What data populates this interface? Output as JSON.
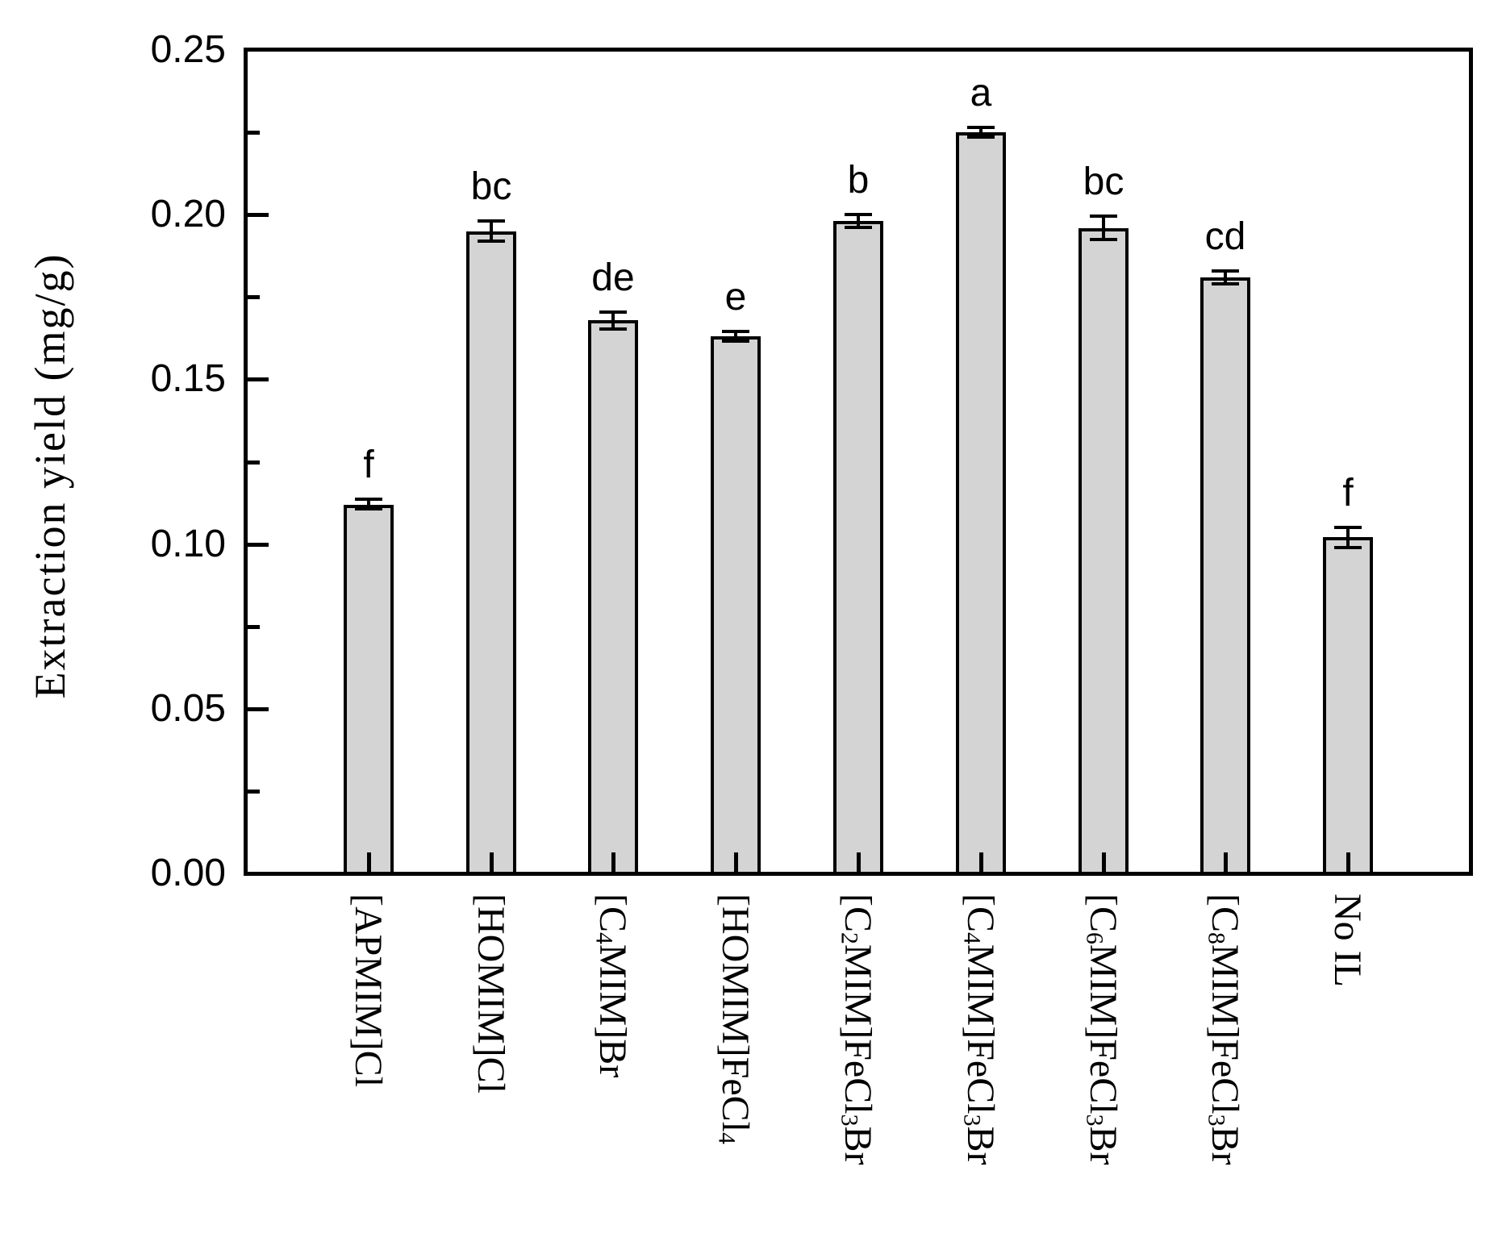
{
  "figure": {
    "background": "#ffffff"
  },
  "chart_data": {
    "type": "bar",
    "title": "",
    "ylabel": "Extraction yield (mg/g)",
    "xlabel": "",
    "ylim": [
      0,
      0.25
    ],
    "y_major_step": 0.05,
    "y_minor_step": 0.025,
    "y_tick_labels": [
      "0.00",
      "0.05",
      "0.10",
      "0.15",
      "0.20",
      "0.25"
    ],
    "grid": false,
    "legend": false,
    "bar_fill": "#d4d4d4",
    "bar_edge": "#000000",
    "categories": [
      "[APMIM]Cl",
      "[HOMIM]Cl",
      "[C4MIM]Br",
      "[HOMIM]FeCl4",
      "[C2MIM]FeCl3Br",
      "[C4MIM]FeCl3Br",
      "[C6MIM]FeCl3Br",
      "[C8MIM]FeCl3Br",
      "No IL"
    ],
    "categories_rich": [
      [
        {
          "t": "[APMIM]Cl"
        }
      ],
      [
        {
          "t": "[HOMIM]Cl"
        }
      ],
      [
        {
          "t": "[C"
        },
        {
          "t": "4",
          "sub": true
        },
        {
          "t": "MIM]Br"
        }
      ],
      [
        {
          "t": "[HOMIM]FeCl"
        },
        {
          "t": "4",
          "sub": true
        }
      ],
      [
        {
          "t": "[C"
        },
        {
          "t": "2",
          "sub": true
        },
        {
          "t": "MIM]FeCl"
        },
        {
          "t": "3",
          "sub": true
        },
        {
          "t": "Br"
        }
      ],
      [
        {
          "t": "[C"
        },
        {
          "t": "4",
          "sub": true
        },
        {
          "t": "MIM]FeCl"
        },
        {
          "t": "3",
          "sub": true
        },
        {
          "t": "Br"
        }
      ],
      [
        {
          "t": "[C"
        },
        {
          "t": "6",
          "sub": true
        },
        {
          "t": "MIM]FeCl"
        },
        {
          "t": "3",
          "sub": true
        },
        {
          "t": "Br"
        }
      ],
      [
        {
          "t": "[C"
        },
        {
          "t": "8",
          "sub": true
        },
        {
          "t": "MIM]FeCl"
        },
        {
          "t": "3",
          "sub": true
        },
        {
          "t": "Br"
        }
      ],
      [
        {
          "t": "No IL"
        }
      ]
    ],
    "values": [
      0.112,
      0.195,
      0.168,
      0.163,
      0.198,
      0.225,
      0.196,
      0.181,
      0.102
    ],
    "errors": [
      0.002,
      0.0035,
      0.003,
      0.002,
      0.0025,
      0.002,
      0.004,
      0.0025,
      0.0035
    ],
    "sig_letters": [
      "f",
      "bc",
      "de",
      "e",
      "b",
      "a",
      "bc",
      "cd",
      "f"
    ]
  }
}
